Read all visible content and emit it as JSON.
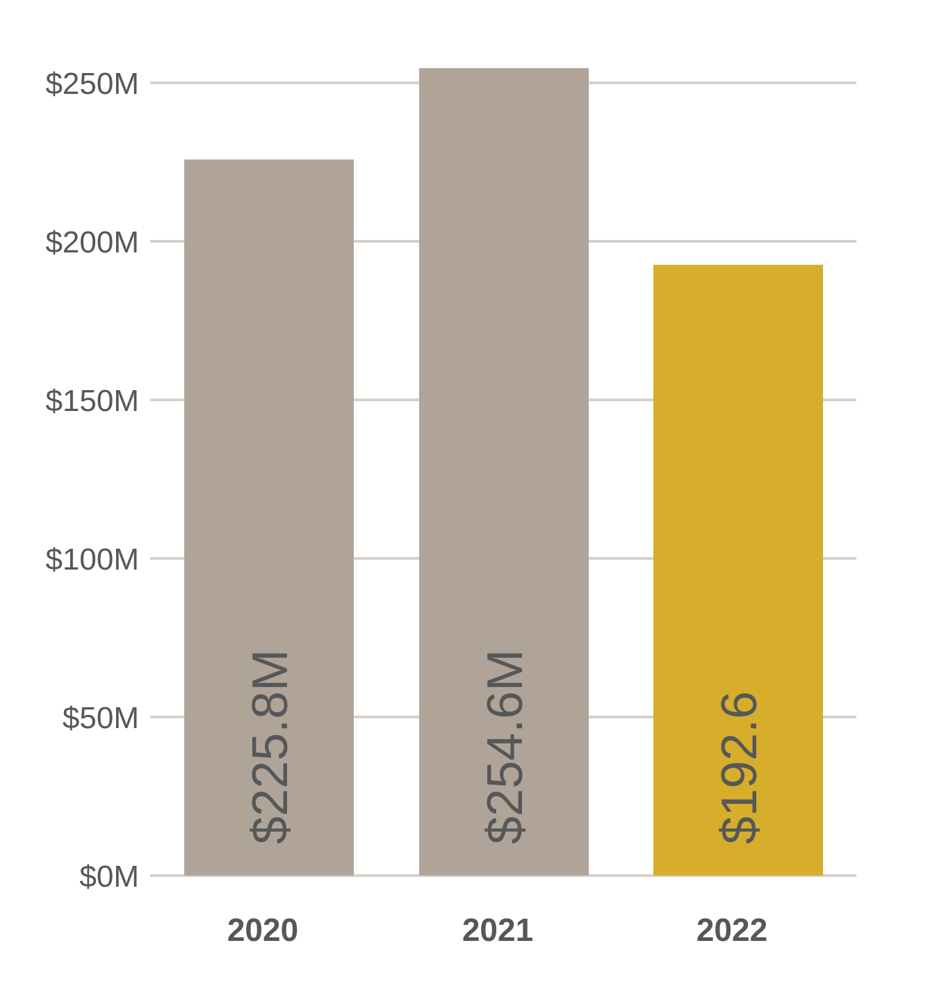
{
  "chart_data": {
    "type": "bar",
    "categories": [
      "2020",
      "2021",
      "2022"
    ],
    "values": [
      225.8,
      254.6,
      192.6
    ],
    "value_labels": [
      "$225.8M",
      "$254.6M",
      "$192.6"
    ],
    "y_ticks": [
      0,
      50,
      100,
      150,
      200,
      250
    ],
    "y_tick_labels": [
      "$0M",
      "$50M",
      "$100M",
      "$150M",
      "$200M",
      "$250M"
    ],
    "ylim": [
      0,
      250
    ],
    "grid": true,
    "bar_colors": [
      "#b0a498",
      "#b0a498",
      "#d6ae2b"
    ],
    "gridline_color": "#d8d1cb",
    "text_color": "#555759"
  }
}
